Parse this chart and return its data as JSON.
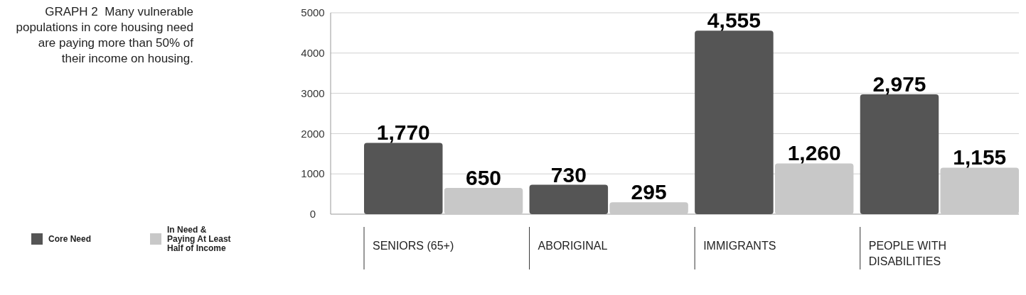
{
  "chart_data": {
    "type": "bar",
    "title": "GRAPH 2  Many vulnerable populations in core housing need are paying more than 50% of their income on housing.",
    "categories": [
      "SENIORS (65+)",
      "ABORIGINAL",
      "IMMIGRANTS",
      "PEOPLE WITH DISABILITIES"
    ],
    "series": [
      {
        "name": "Core Need",
        "color": "#555555",
        "values": [
          1770,
          730,
          4555,
          2975
        ],
        "value_labels": [
          "1,770",
          "730",
          "4,555",
          "2,975"
        ]
      },
      {
        "name": "In Need & Paying At Least Half of Income",
        "color": "#c8c8c8",
        "values": [
          650,
          295,
          1260,
          1155
        ],
        "value_labels": [
          "650",
          "295",
          "1,260",
          "1,155"
        ]
      }
    ],
    "ylim": [
      0,
      5000
    ],
    "yticks": [
      0,
      1000,
      2000,
      3000,
      4000,
      5000
    ],
    "grid": "y",
    "legend": "left"
  }
}
